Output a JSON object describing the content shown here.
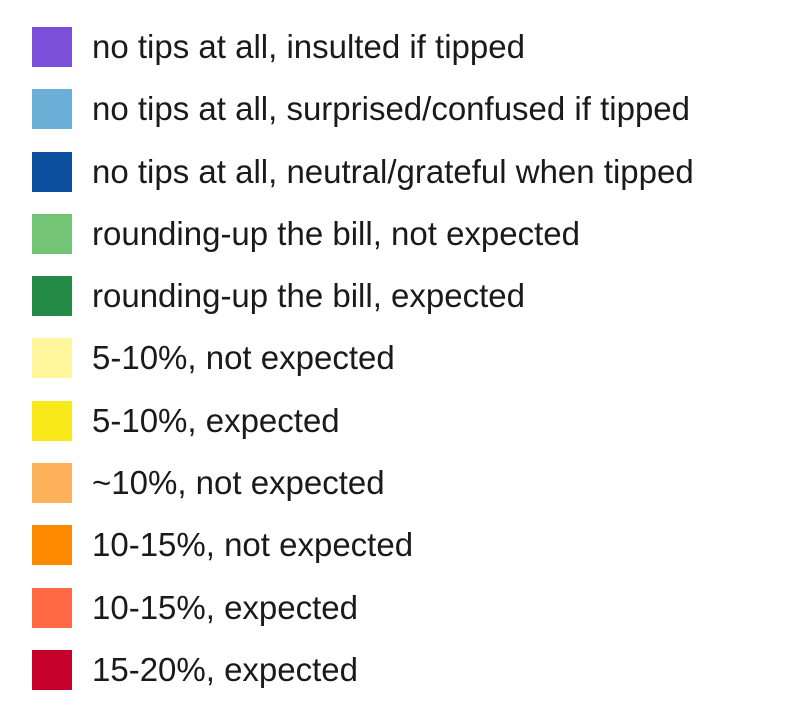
{
  "legend": {
    "items": [
      {
        "label": "no tips at all, insulted if tipped",
        "color": "#7b4fd9"
      },
      {
        "label": "no tips at all, surprised/confused if tipped",
        "color": "#6baed6"
      },
      {
        "label": "no tips at all, neutral/grateful when tipped",
        "color": "#0b4f9e"
      },
      {
        "label": "rounding-up the bill, not expected",
        "color": "#74c476"
      },
      {
        "label": "rounding-up the bill, expected",
        "color": "#238b45"
      },
      {
        "label": "5-10%, not expected",
        "color": "#fff59a"
      },
      {
        "label": "5-10%, expected",
        "color": "#f7e91a"
      },
      {
        "label": "~10%, not expected",
        "color": "#fdb15a"
      },
      {
        "label": "10-15%, not expected",
        "color": "#ff8a00"
      },
      {
        "label": "10-15%, expected",
        "color": "#ff6a45"
      },
      {
        "label": "15-20%, expected",
        "color": "#c4002b"
      }
    ]
  }
}
